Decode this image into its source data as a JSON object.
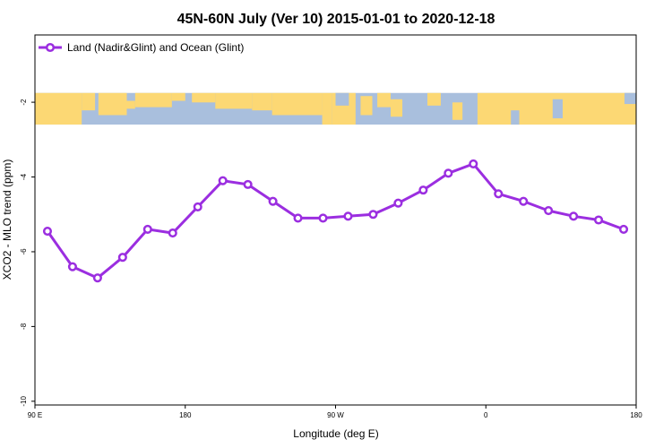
{
  "chart_data": {
    "type": "line",
    "title": "45N-60N July (Ver 10)   2015-01-01 to 2020-12-18",
    "xlabel": "Longitude (deg E)",
    "ylabel": "XCO2 - MLO trend (ppm)",
    "xlim": [
      90,
      450
    ],
    "ylim": [
      -10.1,
      -0.2
    ],
    "x_ticks": [
      {
        "value": 90,
        "label": "90 E"
      },
      {
        "value": 180,
        "label": "180"
      },
      {
        "value": 270,
        "label": "90 W"
      },
      {
        "value": 360,
        "label": "0"
      },
      {
        "value": 450,
        "label": "180"
      }
    ],
    "y_ticks": [
      {
        "value": -2,
        "label": "-2"
      },
      {
        "value": -4,
        "label": "-4"
      },
      {
        "value": -6,
        "label": "-6"
      },
      {
        "value": -8,
        "label": "-8"
      },
      {
        "value": -10,
        "label": "-10"
      }
    ],
    "map_strip": {
      "y_top": -1.75,
      "y_bottom": -2.6,
      "ocean_color": "#a9bfdd",
      "land_color": "#fcd874"
    },
    "series": [
      {
        "name": "Land (Nadir&Glint) and Ocean (Glint)",
        "color": "#9b2ee0",
        "x": [
          97.5,
          112.5,
          127.5,
          142.5,
          157.5,
          172.5,
          187.5,
          202.5,
          217.5,
          232.5,
          247.5,
          262.5,
          277.5,
          292.5,
          307.5,
          322.5,
          337.5,
          352.5,
          367.5,
          382.5,
          397.5,
          412.5,
          427.5,
          442.5
        ],
        "values": [
          -5.45,
          -6.4,
          -6.7,
          -6.15,
          -5.4,
          -5.5,
          -4.8,
          -4.1,
          -4.2,
          -4.65,
          -5.1,
          -5.1,
          -5.05,
          -5.0,
          -4.7,
          -4.35,
          -3.9,
          -3.65,
          -4.45,
          -4.65,
          -4.9,
          -5.05,
          -5.15,
          -5.4
        ]
      }
    ]
  }
}
